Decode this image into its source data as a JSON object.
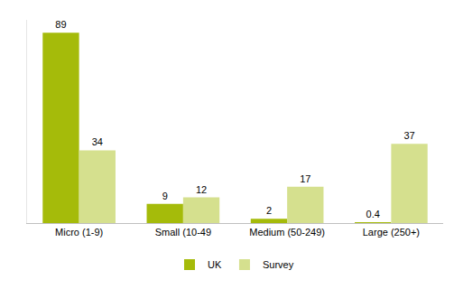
{
  "chart_data": {
    "type": "bar",
    "categories": [
      "Micro (1-9)",
      "Small (10-49",
      "Medium (50-249)",
      "Large (250+)"
    ],
    "series": [
      {
        "name": "UK",
        "color": "#a5bb0a",
        "values": [
          89,
          9,
          2,
          0.4
        ]
      },
      {
        "name": "Survey",
        "color": "#d5e08e",
        "values": [
          34,
          12,
          17,
          37
        ]
      }
    ],
    "ylim": [
      0,
      95
    ],
    "yticks": [],
    "grid": false,
    "legend": "bottom",
    "data_labels": true,
    "tick_labels": "x"
  }
}
